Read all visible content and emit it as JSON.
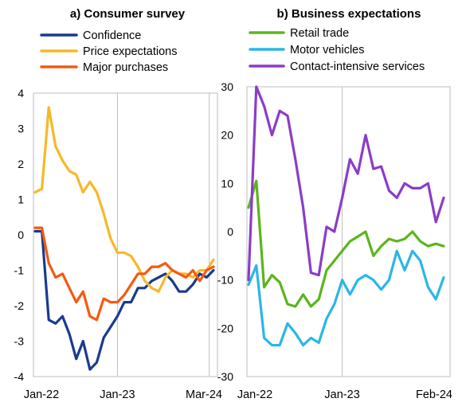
{
  "chart_data": [
    {
      "type": "line",
      "title": "a) Consumer survey",
      "ylim": [
        -4,
        4
      ],
      "yticks": [
        "4",
        "3",
        "2",
        "1",
        "0",
        "-1",
        "-2",
        "-3",
        "-4"
      ],
      "xticks": [
        "Jan-22",
        "Jan-23",
        "Mar-24"
      ],
      "x_start": "Jan-22",
      "x_end": "Mar-24",
      "frequency": "monthly",
      "legend_position": "top",
      "series": [
        {
          "name": "Confidence",
          "color": "#1a3a8f",
          "values": [
            0.1,
            0.1,
            -2.4,
            -2.5,
            -2.3,
            -2.8,
            -3.5,
            -3.0,
            -3.8,
            -3.6,
            -2.9,
            -2.6,
            -2.3,
            -1.9,
            -1.9,
            -1.5,
            -1.5,
            -1.3,
            -1.2,
            -1.1,
            -1.3,
            -1.6,
            -1.6,
            -1.4,
            -1.1,
            -1.2,
            -1.0
          ]
        },
        {
          "name": "Price expectations",
          "color": "#f7b828",
          "values": [
            1.2,
            1.3,
            3.6,
            2.5,
            2.1,
            1.8,
            1.7,
            1.2,
            1.5,
            1.2,
            0.6,
            -0.1,
            -0.5,
            -0.5,
            -0.6,
            -0.9,
            -1.3,
            -1.5,
            -1.6,
            -1.2,
            -1.0,
            -1.1,
            -1.1,
            -1.2,
            -1.0,
            -1.0,
            -0.7
          ]
        },
        {
          "name": "Major purchases",
          "color": "#f45a10",
          "values": [
            0.2,
            0.2,
            -0.8,
            -1.2,
            -1.1,
            -1.5,
            -1.9,
            -1.6,
            -2.3,
            -2.4,
            -1.8,
            -1.9,
            -1.9,
            -1.7,
            -1.4,
            -1.1,
            -1.1,
            -0.9,
            -0.9,
            -0.8,
            -1.0,
            -1.1,
            -1.2,
            -1.0,
            -1.3,
            -1.0,
            -0.9
          ]
        }
      ]
    },
    {
      "type": "line",
      "title": "b) Business expectations",
      "ylim": [
        -30,
        30
      ],
      "yticks": [
        "30",
        "20",
        "10",
        "0",
        "-10",
        "-20",
        "-30"
      ],
      "xticks": [
        "Jan-22",
        "Jan-23",
        "Feb-24"
      ],
      "x_start": "Jan-22",
      "x_end": "Feb-24",
      "frequency": "monthly",
      "legend_position": "top",
      "series": [
        {
          "name": "Retail trade",
          "color": "#5bb51d",
          "values": [
            5,
            10.5,
            -11.5,
            -9,
            -10.5,
            -15,
            -15.5,
            -13,
            -15.5,
            -14,
            -8,
            -6,
            -4,
            -2,
            -1,
            0,
            -5,
            -3,
            -1.5,
            -2,
            -1.5,
            0,
            -2,
            -3,
            -2.5,
            -3
          ]
        },
        {
          "name": "Motor vehicles",
          "color": "#2bb6e6",
          "values": [
            -11,
            -7,
            -22,
            -23.5,
            -23.5,
            -19,
            -21,
            -23.5,
            -22,
            -23,
            -18,
            -15,
            -10,
            -13,
            -10,
            -9,
            -10,
            -12,
            -10,
            -4,
            -8,
            -4,
            -6,
            -11.5,
            -14,
            -9.5
          ]
        },
        {
          "name": "Contact-intensive services",
          "color": "#8c3cc8",
          "values": [
            -10,
            30,
            26,
            20,
            25,
            24,
            15,
            5,
            -8.5,
            -9,
            1,
            0,
            7,
            15,
            12,
            20,
            13,
            13.5,
            8.5,
            7,
            10,
            9,
            9,
            10,
            2,
            7
          ]
        }
      ]
    }
  ]
}
